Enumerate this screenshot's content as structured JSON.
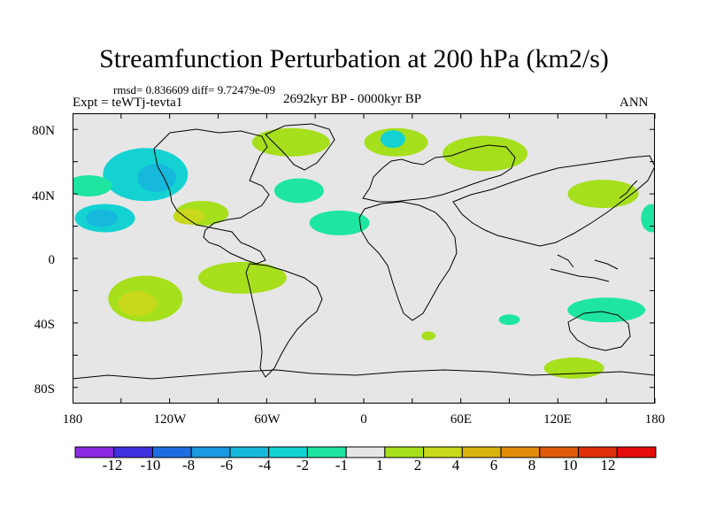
{
  "title": "Streamfunction Perturbation at 200 hPa (km2/s)",
  "stats": "rmsd= 0.836609 diff= 9.72479e-09",
  "experiment": "Expt = teWTj-tevta1",
  "period": "2692kyr BP - 0000kyr BP",
  "season": "ANN",
  "lat_labels": [
    "80N",
    "40N",
    "0",
    "40S",
    "80S"
  ],
  "lon_labels": [
    "180",
    "120W",
    "60W",
    "0",
    "60E",
    "120E",
    "180"
  ],
  "background_color": "#e6e6e6",
  "colorbar": {
    "labels": [
      "-12",
      "-10",
      "-8",
      "-6",
      "-4",
      "-2",
      "-1",
      "1",
      "2",
      "4",
      "6",
      "8",
      "10",
      "12"
    ],
    "colors": [
      "#8a2be2",
      "#3f31e0",
      "#1c6ee0",
      "#1a98e0",
      "#16b8dc",
      "#14d2d2",
      "#1ee6a0",
      "#e6e6e6",
      "#a6df1c",
      "#c8d81a",
      "#d8b20e",
      "#e08c0a",
      "#e05a0a",
      "#e0300a",
      "#e60b0b"
    ]
  },
  "chart_data": {
    "type": "contour-map",
    "variable": "Streamfunction Perturbation at 200 hPa",
    "units": "km2/s",
    "levels": [
      -12,
      -10,
      -8,
      -6,
      -4,
      -2,
      -1,
      1,
      2,
      4,
      6,
      8,
      10,
      12
    ],
    "lon_range": [
      -180,
      180
    ],
    "lat_range": [
      -90,
      90
    ],
    "regions": [
      {
        "name": "north-pacific-low",
        "lon": -135,
        "lat": 52,
        "value": -3
      },
      {
        "name": "north-pacific-low-core",
        "lon": -128,
        "lat": 50,
        "value": -4
      },
      {
        "name": "central-pacific-low",
        "lon": -160,
        "lat": 25,
        "value": -2
      },
      {
        "name": "central-pacific-low-core",
        "lon": -162,
        "lat": 25,
        "value": -4
      },
      {
        "name": "west-pacific-low",
        "lon": -170,
        "lat": 45,
        "value": -1.5
      },
      {
        "name": "north-atlantic-low",
        "lon": -40,
        "lat": 42,
        "value": -1.5
      },
      {
        "name": "west-africa-low",
        "lon": -15,
        "lat": 22,
        "value": -1.5
      },
      {
        "name": "greenland-high",
        "lon": -45,
        "lat": 72,
        "value": 1.5
      },
      {
        "name": "scandinavia-high",
        "lon": 20,
        "lat": 72,
        "value": 1.5
      },
      {
        "name": "scandinavia-core",
        "lon": 18,
        "lat": 74,
        "value": -2
      },
      {
        "name": "siberia-high",
        "lon": 75,
        "lat": 65,
        "value": 1.5
      },
      {
        "name": "north-america-high",
        "lon": -100,
        "lat": 28,
        "value": 2
      },
      {
        "name": "north-america-core",
        "lon": -108,
        "lat": 26,
        "value": 4
      },
      {
        "name": "north-pacific-east-high",
        "lon": 148,
        "lat": 40,
        "value": 1.5
      },
      {
        "name": "east-asia-low",
        "lon": 178,
        "lat": 25,
        "value": -1.5
      },
      {
        "name": "south-pacific-high",
        "lon": -135,
        "lat": -25,
        "value": 2
      },
      {
        "name": "south-pacific-core",
        "lon": -140,
        "lat": -28,
        "value": 4
      },
      {
        "name": "south-america-high",
        "lon": -75,
        "lat": -12,
        "value": 1.5
      },
      {
        "name": "australia-low",
        "lon": 150,
        "lat": -32,
        "value": -1.5
      },
      {
        "name": "south-indian-low",
        "lon": 90,
        "lat": -38,
        "value": -1.5
      },
      {
        "name": "southern-ocean-high",
        "lon": 130,
        "lat": -68,
        "value": 1.5
      },
      {
        "name": "south-atlantic-high",
        "lon": 40,
        "lat": -48,
        "value": 1.5
      }
    ]
  }
}
